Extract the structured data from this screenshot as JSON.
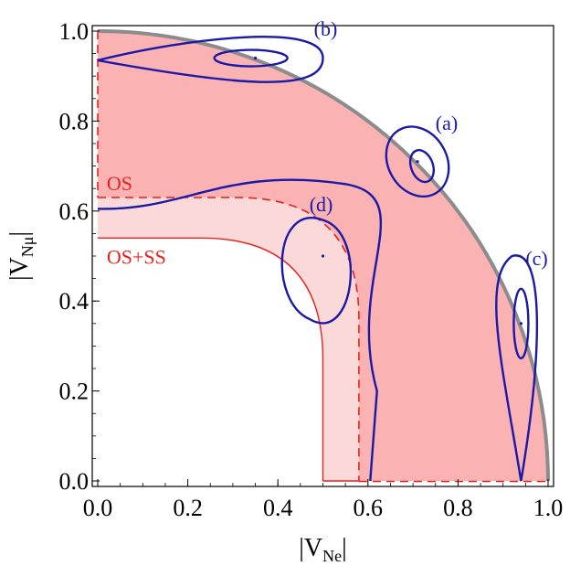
{
  "chart_data": {
    "type": "contour",
    "xlim": [
      0,
      1
    ],
    "ylim": [
      0,
      1
    ],
    "x_ticks": [
      "0.0",
      "0.2",
      "0.4",
      "0.6",
      "0.8",
      "1.0"
    ],
    "y_ticks": [
      "0.0",
      "0.2",
      "0.4",
      "0.6",
      "0.8",
      "1.0"
    ],
    "x_tick_values": [
      0,
      0.2,
      0.4,
      0.6,
      0.8,
      1.0
    ],
    "y_tick_values": [
      0,
      0.2,
      0.4,
      0.6,
      0.8,
      1.0
    ],
    "xlabel": {
      "main": "|V",
      "sub": "Ne",
      "end": "|"
    },
    "ylabel": {
      "main": "|V",
      "sub": "Nμ",
      "end": "|"
    },
    "unit_circle_radius": 1.0,
    "regions": [
      {
        "label": "OS",
        "boundary_point": [
          0.0,
          0.63
        ],
        "style": "dashed",
        "color": "#e8221c"
      },
      {
        "label": "OS+SS",
        "boundary_point": [
          0.0,
          0.54
        ],
        "style": "solid",
        "color": "#e8221c"
      }
    ],
    "benchmark_points": [
      {
        "label": "(a)",
        "x": 0.71,
        "y": 0.71
      },
      {
        "label": "(b)",
        "x": 0.35,
        "y": 0.94
      },
      {
        "label": "(c)",
        "x": 0.94,
        "y": 0.35
      },
      {
        "label": "(d)",
        "x": 0.5,
        "y": 0.5
      }
    ],
    "colors": {
      "allowed_fill": "#fbb2b2",
      "os_ss_fill": "#fcd9d9",
      "region_line": "#e8221c",
      "contour": "#1a1aa6",
      "circle": "#8c8c8c"
    }
  }
}
